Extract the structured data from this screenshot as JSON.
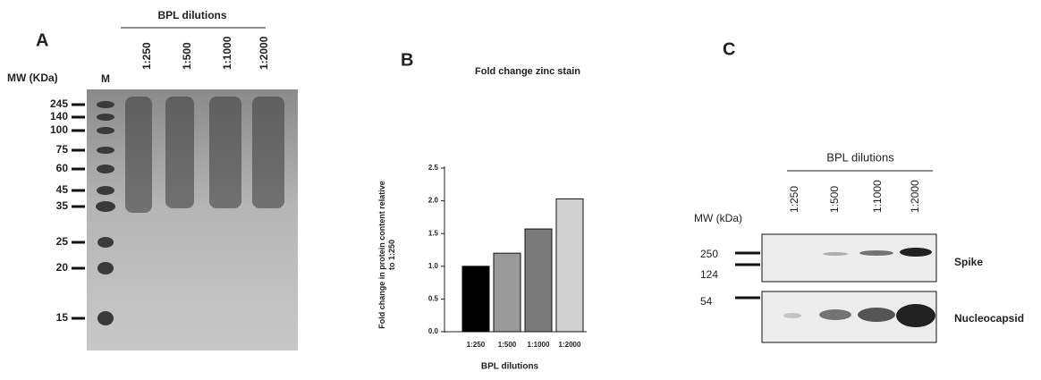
{
  "panel_a": {
    "letter": "A",
    "group_label": "BPL dilutions",
    "mw_label": "MW (KDa)",
    "lanes": [
      "M",
      "1:250",
      "1:500",
      "1:1000",
      "1:2000"
    ],
    "markers": [
      "245",
      "140",
      "100",
      "75",
      "60",
      "45",
      "35",
      "25",
      "20",
      "15"
    ]
  },
  "chart_data": {
    "type": "bar",
    "letter": "B",
    "title": "Fold change zinc stain",
    "x_label": "BPL dilutions",
    "y_label": "Fold change in protein content relative to 1:250",
    "categories": [
      "1:250",
      "1:500",
      "1:1000",
      "1:2000"
    ],
    "values": [
      1.0,
      1.2,
      1.57,
      2.03
    ],
    "colors": [
      "#000000",
      "#9a9a9a",
      "#7a7a7a",
      "#d0d0d0"
    ],
    "ylim": [
      0,
      2.5
    ],
    "yticks": [
      {
        "value": 0,
        "label": "0.0"
      },
      0.5,
      {
        "value": 1,
        "label": "1.0"
      },
      1.5,
      {
        "value": 2,
        "label": "2.0"
      },
      2.5
    ]
  },
  "panel_c": {
    "letter": "C",
    "group_label": "BPL dilutions",
    "mw_label": "MW (kDa)",
    "lanes": [
      "1:250",
      "1:500",
      "1:1000",
      "1:2000"
    ],
    "markers": [
      "250",
      "124",
      "54"
    ],
    "bands": [
      "Spike",
      "Nucleocapsid"
    ]
  }
}
